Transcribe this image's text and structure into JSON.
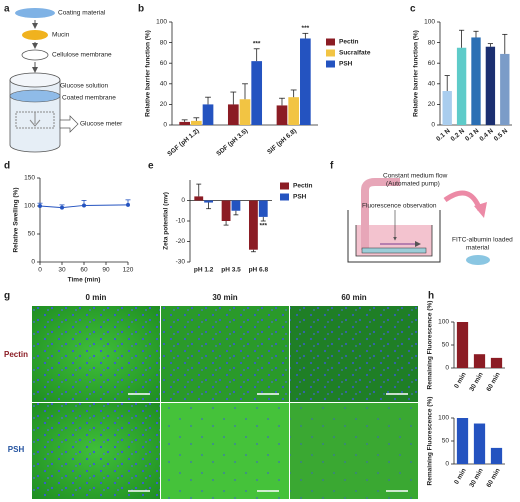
{
  "panel_labels": [
    "a",
    "b",
    "c",
    "d",
    "e",
    "f",
    "g",
    "h"
  ],
  "diagram_a": {
    "labels": [
      "Coating material",
      "Mucin",
      "Cellulose membrane",
      "Glucose solution",
      "Coated membrane",
      "Glucose meter"
    ]
  },
  "diagram_f": {
    "labels": [
      "Constant medium flow",
      "(Automated pump)",
      "Fluorescence observation",
      "FITC-albumin loaded",
      "material"
    ]
  },
  "micrographs": {
    "columns": [
      "0 min",
      "30 min",
      "60 min"
    ],
    "rows": [
      "Pectin",
      "PSH"
    ]
  },
  "chart_data": [
    {
      "type": "bar",
      "ylabel": "Relative barrier function (%)",
      "categories": [
        "SGF (pH 1.2)",
        "SDF (pH 3.5)",
        "SIF (pH 6.8)"
      ],
      "series": [
        {
          "name": "Pectin",
          "color": "#8b1c24",
          "values": [
            3,
            20,
            19
          ],
          "errors": [
            2,
            12,
            7
          ]
        },
        {
          "name": "Sucralfate",
          "color": "#f2c443",
          "values": [
            4,
            25,
            27
          ],
          "errors": [
            3,
            15,
            7
          ]
        },
        {
          "name": "PSH",
          "color": "#2453c0",
          "values": [
            20,
            62,
            84
          ],
          "errors": [
            7,
            12,
            5
          ],
          "value_annotations": [
            null,
            "***",
            "***"
          ]
        }
      ],
      "ylim": [
        0,
        100
      ],
      "yticks": [
        0,
        20,
        40,
        60,
        80,
        100
      ],
      "legend": "right"
    },
    {
      "type": "bar",
      "ylabel": "Relative barrier function (%)",
      "categories": [
        "0.1 N",
        "0.2 N",
        "0.3 N",
        "0.4 N",
        "0.5 N"
      ],
      "values": [
        33,
        75,
        85,
        76,
        69
      ],
      "errors": [
        15,
        17,
        6,
        3,
        19
      ],
      "colors": [
        "#a9cdee",
        "#5ecbc9",
        "#2b6fb4",
        "#1b2f70",
        "#7b9cc8"
      ],
      "ylim": [
        0,
        100
      ],
      "yticks": [
        0,
        20,
        40,
        60,
        80,
        100
      ]
    },
    {
      "type": "line",
      "xlabel": "Time (min)",
      "ylabel": "Relative Swelling (%)",
      "x": [
        0,
        30,
        60,
        120
      ],
      "values": [
        100,
        97,
        101,
        102
      ],
      "errors": [
        5,
        5,
        9,
        9
      ],
      "color": "#2453c0",
      "xlim": [
        0,
        120
      ],
      "xticks": [
        0,
        30,
        60,
        90,
        120
      ],
      "ylim": [
        0,
        150
      ],
      "yticks": [
        0,
        50,
        100,
        150
      ]
    },
    {
      "type": "bar",
      "ylabel": "Zeta potential (mv)",
      "categories": [
        "pH 1.2",
        "pH 3.5",
        "pH 6.8"
      ],
      "series": [
        {
          "name": "Pectin",
          "color": "#8b1c24",
          "values": [
            2,
            -10,
            -24
          ],
          "errors": [
            6,
            2,
            1
          ]
        },
        {
          "name": "PSH",
          "color": "#2453c0",
          "values": [
            -1,
            -5,
            -8
          ],
          "errors": [
            3,
            2,
            2
          ],
          "value_annotations": [
            null,
            null,
            "***"
          ]
        }
      ],
      "ylim": [
        -30,
        10
      ],
      "yticks": [
        -30,
        -20,
        -10,
        0
      ],
      "legend": "right"
    },
    {
      "type": "bar",
      "ylabel": "Remaining Fluorescence (%)",
      "categories": [
        "0 min",
        "30 min",
        "60 min"
      ],
      "values": [
        100,
        30,
        22
      ],
      "color": "#8b1c24",
      "ylim": [
        0,
        100
      ],
      "yticks": [
        0,
        50,
        100
      ]
    },
    {
      "type": "bar",
      "ylabel": "Remaining Fluorescence (%)",
      "categories": [
        "0 min",
        "30 min",
        "60 min"
      ],
      "values": [
        100,
        88,
        35
      ],
      "color": "#2453c0",
      "ylim": [
        0,
        100
      ],
      "yticks": [
        0,
        50,
        100
      ]
    }
  ]
}
